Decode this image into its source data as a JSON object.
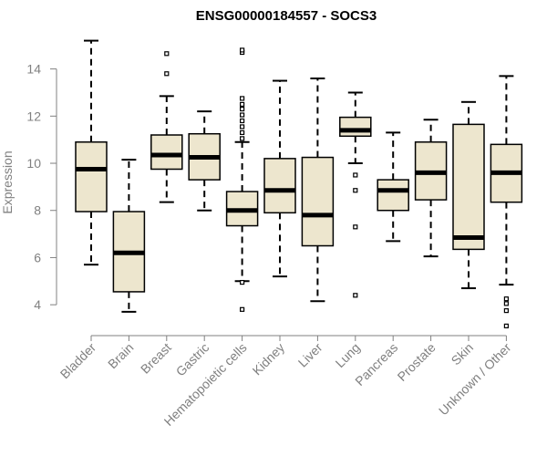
{
  "chart_data": {
    "type": "boxplot",
    "title": "ENSG00000184557 - SOCS3",
    "xlabel": "",
    "ylabel": "Expression",
    "ylim": [
      3.5,
      15.5
    ],
    "yticks": [
      4,
      6,
      8,
      10,
      12,
      14
    ],
    "box_fill": "#EDE6CE",
    "box_stroke": "#000000",
    "categories": [
      "Bladder",
      "Brain",
      "Breast",
      "Gastric",
      "Hematopoietic cells",
      "Kidney",
      "Liver",
      "Lung",
      "Pancreas",
      "Prostate",
      "Skin",
      "Unknown / Other"
    ],
    "boxes": [
      {
        "name": "Bladder",
        "whisker_low": 5.7,
        "q1": 7.95,
        "median": 9.75,
        "q3": 10.9,
        "whisker_high": 15.2,
        "outliers": []
      },
      {
        "name": "Brain",
        "whisker_low": 3.7,
        "q1": 4.55,
        "median": 6.2,
        "q3": 7.95,
        "whisker_high": 10.15,
        "outliers": []
      },
      {
        "name": "Breast",
        "whisker_low": 8.35,
        "q1": 9.75,
        "median": 10.35,
        "q3": 11.2,
        "whisker_high": 12.85,
        "outliers": [
          13.8,
          14.65
        ]
      },
      {
        "name": "Gastric",
        "whisker_low": 8.0,
        "q1": 9.3,
        "median": 10.25,
        "q3": 11.25,
        "whisker_high": 12.2,
        "outliers": []
      },
      {
        "name": "Hematopoietic cells",
        "whisker_low": 5.0,
        "q1": 7.35,
        "median": 8.0,
        "q3": 8.8,
        "whisker_high": 10.9,
        "outliers": [
          4.95,
          3.8,
          11.05,
          11.3,
          11.55,
          11.8,
          12.05,
          12.3,
          12.5,
          12.75,
          14.7,
          14.8
        ]
      },
      {
        "name": "Kidney",
        "whisker_low": 5.2,
        "q1": 7.9,
        "median": 8.85,
        "q3": 10.2,
        "whisker_high": 13.5,
        "outliers": []
      },
      {
        "name": "Liver",
        "whisker_low": 4.15,
        "q1": 6.5,
        "median": 7.8,
        "q3": 10.25,
        "whisker_high": 13.6,
        "outliers": []
      },
      {
        "name": "Lung",
        "whisker_low": 10.0,
        "q1": 11.15,
        "median": 11.4,
        "q3": 11.95,
        "whisker_high": 13.0,
        "outliers": [
          9.5,
          8.85,
          7.3,
          4.4
        ]
      },
      {
        "name": "Pancreas",
        "whisker_low": 6.7,
        "q1": 8.0,
        "median": 8.85,
        "q3": 9.3,
        "whisker_high": 11.3,
        "outliers": []
      },
      {
        "name": "Prostate",
        "whisker_low": 6.05,
        "q1": 8.45,
        "median": 9.6,
        "q3": 10.9,
        "whisker_high": 11.85,
        "outliers": []
      },
      {
        "name": "Skin",
        "whisker_low": 4.7,
        "q1": 6.35,
        "median": 6.85,
        "q3": 11.65,
        "whisker_high": 12.6,
        "outliers": []
      },
      {
        "name": "Unknown / Other",
        "whisker_low": 4.85,
        "q1": 8.35,
        "median": 9.6,
        "q3": 10.8,
        "whisker_high": 13.7,
        "outliers": [
          4.25,
          4.05,
          3.75,
          3.1
        ]
      }
    ]
  }
}
